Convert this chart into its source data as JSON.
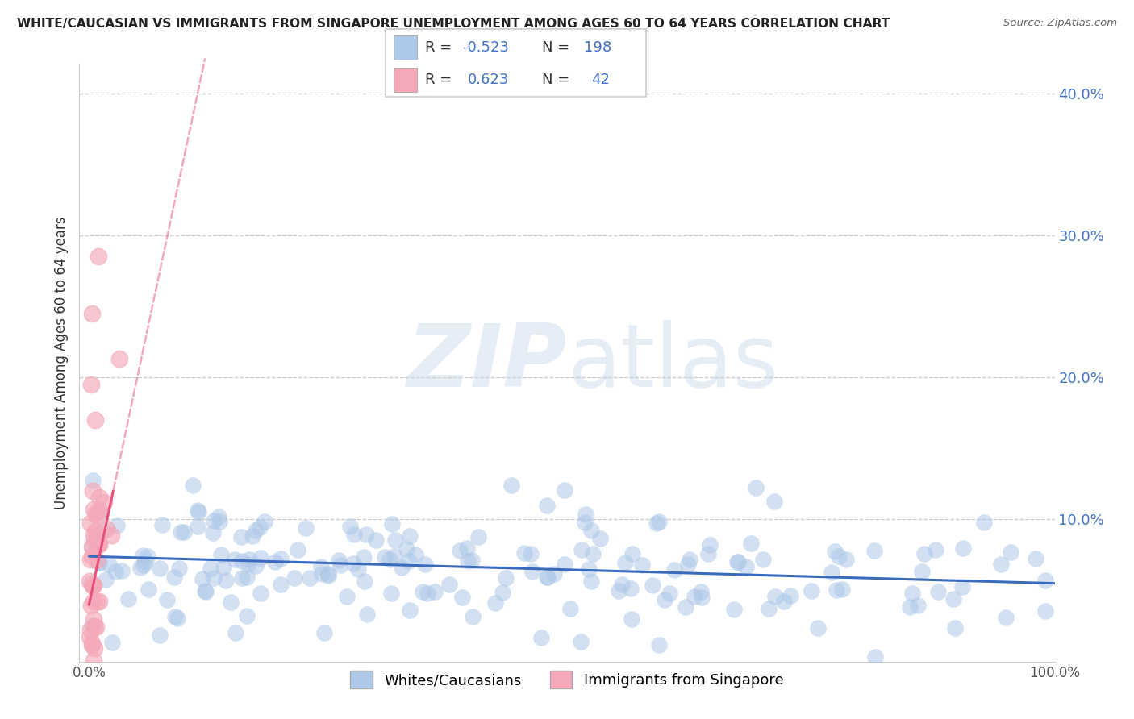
{
  "title": "WHITE/CAUCASIAN VS IMMIGRANTS FROM SINGAPORE UNEMPLOYMENT AMONG AGES 60 TO 64 YEARS CORRELATION CHART",
  "source": "Source: ZipAtlas.com",
  "ylabel": "Unemployment Among Ages 60 to 64 years",
  "xlim": [
    -0.01,
    1.0
  ],
  "ylim": [
    0,
    0.42
  ],
  "yticks": [
    0.1,
    0.2,
    0.3,
    0.4
  ],
  "ytick_labels": [
    "10.0%",
    "20.0%",
    "30.0%",
    "40.0%"
  ],
  "xtick_labels": [
    "0.0%",
    "100.0%"
  ],
  "xtick_vals": [
    0.0,
    1.0
  ],
  "blue_R": -0.523,
  "blue_N": 198,
  "pink_R": 0.623,
  "pink_N": 42,
  "blue_color": "#adc8e8",
  "pink_color": "#f5a8b8",
  "blue_line_color": "#3a6bbf",
  "pink_line_color": "#e8507a",
  "watermark_zip": "ZIP",
  "watermark_atlas": "atlas",
  "legend_label_blue": "Whites/Caucasians",
  "legend_label_pink": "Immigrants from Singapore",
  "background_color": "#ffffff",
  "blue_scatter_seed": 42,
  "pink_scatter_seed": 123,
  "blue_line_start_y": 0.074,
  "blue_line_end_y": 0.055,
  "pink_line_intercept": 0.04,
  "pink_line_slope": 3.2
}
